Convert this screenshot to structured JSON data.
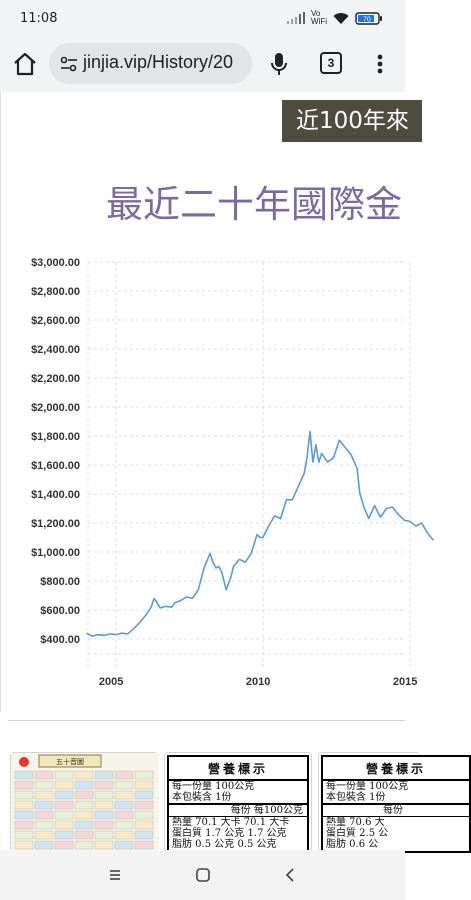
{
  "status": {
    "time": "11:08",
    "network_label": "Vo WiFi",
    "battery": "70"
  },
  "browser": {
    "url": "jinjia.vip/History/20",
    "tab_count": "3",
    "icons": [
      "home-icon",
      "site-info-icon",
      "mic-icon",
      "tab-switcher-icon",
      "more-vert-icon"
    ]
  },
  "page": {
    "banner": "近100年來",
    "heading": "最近二十年國際金"
  },
  "chart_data": {
    "type": "line",
    "title": "最近二十年國際金",
    "xlabel": "",
    "ylabel": "",
    "xlim": [
      2004.0,
      2015.8
    ],
    "ylim": [
      300,
      3000
    ],
    "y_ticks": [
      "$3,000.00",
      "$2,800.00",
      "$2,600.00",
      "$2,400.00",
      "$2,200.00",
      "$2,000.00",
      "$1,800.00",
      "$1,600.00",
      "$1,400.00",
      "$1,200.00",
      "$1,000.00",
      "$800.00",
      "$600.00",
      "$400.00"
    ],
    "x_ticks": [
      "2005",
      "2010",
      "2015"
    ],
    "grid": true,
    "line_color": "#5b9bd5",
    "series": [
      {
        "x": [
          2004.0,
          2004.2,
          2004.4,
          2004.6,
          2004.8,
          2005.0,
          2005.2,
          2005.4,
          2005.6,
          2005.8,
          2006.0,
          2006.2,
          2006.3,
          2006.4,
          2006.5,
          2006.7,
          2006.9,
          2007.0,
          2007.2,
          2007.4,
          2007.6,
          2007.8,
          2008.0,
          2008.2,
          2008.3,
          2008.4,
          2008.5,
          2008.6,
          2008.75,
          2008.9,
          2009.0,
          2009.2,
          2009.4,
          2009.6,
          2009.8,
          2009.9,
          2010.0,
          2010.2,
          2010.4,
          2010.6,
          2010.8,
          2011.0,
          2011.2,
          2011.4,
          2011.5,
          2011.6,
          2011.7,
          2011.8,
          2011.9,
          2012.0,
          2012.2,
          2012.4,
          2012.6,
          2012.8,
          2013.0,
          2013.2,
          2013.3,
          2013.45,
          2013.6,
          2013.8,
          2014.0,
          2014.2,
          2014.4,
          2014.6,
          2014.8,
          2015.0,
          2015.2,
          2015.4,
          2015.6,
          2015.8
        ],
        "y": [
          440,
          420,
          430,
          425,
          435,
          430,
          440,
          435,
          470,
          510,
          560,
          620,
          680,
          650,
          615,
          625,
          620,
          650,
          665,
          690,
          680,
          740,
          890,
          990,
          930,
          890,
          900,
          860,
          740,
          820,
          900,
          950,
          930,
          990,
          1120,
          1100,
          1100,
          1180,
          1250,
          1230,
          1360,
          1360,
          1450,
          1540,
          1650,
          1830,
          1620,
          1740,
          1620,
          1680,
          1620,
          1650,
          1770,
          1720,
          1670,
          1580,
          1400,
          1300,
          1230,
          1320,
          1240,
          1300,
          1310,
          1260,
          1220,
          1210,
          1180,
          1200,
          1130,
          1080
        ]
      }
    ]
  },
  "thumbnails": [
    {
      "kind": "calendar-image",
      "title": "五十音圖"
    },
    {
      "kind": "nutrition-label",
      "title": "營養標示",
      "lines": [
        "每一份量 100公克",
        "本包裝含 1份",
        "每份    每100公克",
        "熱量   70.1 大卡 70.1 大卡",
        "蛋白質  1.7 公克  1.7 公克",
        "脂肪   0.5 公克  0.5 公克"
      ]
    },
    {
      "kind": "nutrition-label",
      "title": "營養標示",
      "lines": [
        "每一份量 100公克",
        "本包裝含 1份",
        "每份",
        "熱量   70.6 大",
        "蛋白質  2.5 公",
        "脂肪   0.6 公"
      ]
    }
  ],
  "nav": {
    "icons": [
      "recents-icon",
      "home-circle-icon",
      "back-icon"
    ]
  }
}
